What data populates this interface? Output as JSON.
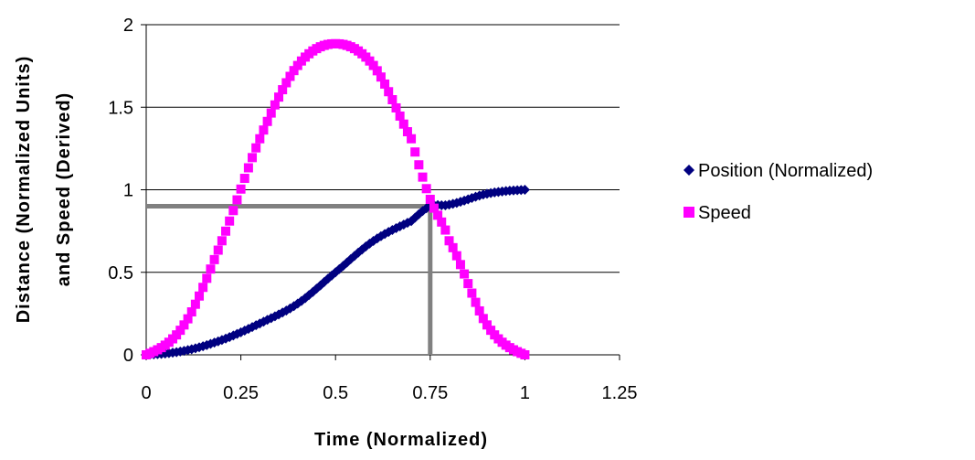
{
  "chart_data": {
    "type": "scatter",
    "xlabel": "Time (Normalized)",
    "ylabel_lines": [
      "Distance (Normalized Units)",
      "and Speed (Derived)"
    ],
    "xlim": [
      0,
      1.25
    ],
    "ylim": [
      0,
      2
    ],
    "xticks": [
      "0",
      "0.25",
      "0.5",
      "0.75",
      "1",
      "1.25"
    ],
    "yticks": [
      "0",
      "0.5",
      "1",
      "1.5",
      "2"
    ],
    "grid": "horizontal",
    "legend_position": "right",
    "series": [
      {
        "name": "Position (Normalized)",
        "color": "#000080",
        "marker": "diamond",
        "x": [
          0,
          0.1,
          0.2,
          0.3,
          0.4,
          0.5,
          0.6,
          0.7,
          0.75,
          0.8,
          0.9,
          1.0
        ],
        "y": [
          0,
          0.024,
          0.09,
          0.19,
          0.31,
          0.5,
          0.69,
          0.81,
          0.9,
          0.91,
          0.976,
          1.0
        ]
      },
      {
        "name": "Speed",
        "color": "#FF00FF",
        "marker": "square",
        "x": [
          0,
          0.1,
          0.2,
          0.3,
          0.4,
          0.5,
          0.6,
          0.7,
          0.75,
          0.8,
          0.9,
          1.0
        ],
        "y": [
          0,
          0.181,
          0.691,
          1.309,
          1.753,
          1.885,
          1.753,
          1.309,
          0.942,
          0.691,
          0.181,
          0
        ]
      }
    ],
    "reference_lines": {
      "color": "#808080",
      "x_value": 0.75,
      "y_value": 0.9
    }
  }
}
